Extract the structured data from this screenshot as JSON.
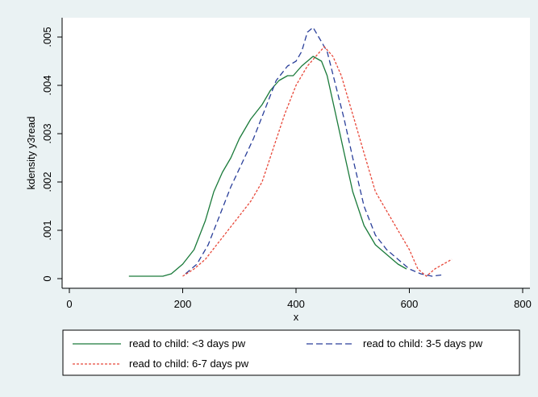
{
  "chart_data": {
    "type": "line",
    "xlabel": "x",
    "ylabel": "kdensity y3read",
    "xlim": [
      0,
      800
    ],
    "ylim": [
      0,
      0.0053
    ],
    "xticks": [
      0,
      200,
      400,
      600,
      800
    ],
    "xtick_labels": [
      "0",
      "200",
      "400",
      "600",
      "800"
    ],
    "yticks": [
      0,
      0.001,
      0.002,
      0.003,
      0.004,
      0.005
    ],
    "ytick_labels": [
      "0",
      ".001",
      ".002",
      ".003",
      ".004",
      ".005"
    ],
    "grid": false,
    "legend_position": "bottom",
    "series": [
      {
        "name": "read to child: <3 days pw",
        "color": "#1a7a3a",
        "dash": "solid",
        "points": [
          [
            105,
            5e-05
          ],
          [
            140,
            5e-05
          ],
          [
            165,
            5e-05
          ],
          [
            180,
            0.0001
          ],
          [
            200,
            0.0003
          ],
          [
            220,
            0.0006
          ],
          [
            240,
            0.0012
          ],
          [
            255,
            0.0018
          ],
          [
            270,
            0.0022
          ],
          [
            285,
            0.0025
          ],
          [
            300,
            0.0029
          ],
          [
            320,
            0.0033
          ],
          [
            340,
            0.0036
          ],
          [
            355,
            0.0039
          ],
          [
            370,
            0.0041
          ],
          [
            385,
            0.0042
          ],
          [
            395,
            0.0042
          ],
          [
            410,
            0.0044
          ],
          [
            420,
            0.0045
          ],
          [
            430,
            0.0046
          ],
          [
            445,
            0.0045
          ],
          [
            455,
            0.0042
          ],
          [
            470,
            0.0034
          ],
          [
            485,
            0.0026
          ],
          [
            500,
            0.0018
          ],
          [
            520,
            0.0011
          ],
          [
            540,
            0.0007
          ],
          [
            560,
            0.0005
          ],
          [
            580,
            0.0003
          ],
          [
            595,
            0.0002
          ]
        ]
      },
      {
        "name": "read to child: 3-5 days pw",
        "color": "#2a3f9a",
        "dash": "long-dash",
        "points": [
          [
            205,
            0.0001
          ],
          [
            225,
            0.0003
          ],
          [
            245,
            0.0007
          ],
          [
            265,
            0.0013
          ],
          [
            285,
            0.0019
          ],
          [
            305,
            0.0024
          ],
          [
            325,
            0.0029
          ],
          [
            345,
            0.0035
          ],
          [
            365,
            0.0041
          ],
          [
            385,
            0.0044
          ],
          [
            400,
            0.0045
          ],
          [
            410,
            0.0047
          ],
          [
            420,
            0.0051
          ],
          [
            430,
            0.0052
          ],
          [
            440,
            0.005
          ],
          [
            455,
            0.0047
          ],
          [
            470,
            0.004
          ],
          [
            485,
            0.0033
          ],
          [
            500,
            0.0025
          ],
          [
            520,
            0.0015
          ],
          [
            540,
            0.0009
          ],
          [
            560,
            0.0006
          ],
          [
            580,
            0.0004
          ],
          [
            600,
            0.0002
          ],
          [
            620,
            0.0001
          ],
          [
            640,
            5e-05
          ],
          [
            660,
            8e-05
          ]
        ]
      },
      {
        "name": "read to child: 6-7 days pw",
        "color": "#e8483a",
        "dash": "short-dash",
        "points": [
          [
            200,
            5e-05
          ],
          [
            220,
            0.0002
          ],
          [
            240,
            0.0004
          ],
          [
            260,
            0.0007
          ],
          [
            280,
            0.001
          ],
          [
            300,
            0.0013
          ],
          [
            320,
            0.0016
          ],
          [
            340,
            0.002
          ],
          [
            360,
            0.0027
          ],
          [
            380,
            0.0034
          ],
          [
            400,
            0.004
          ],
          [
            420,
            0.0044
          ],
          [
            435,
            0.0046
          ],
          [
            450,
            0.0048
          ],
          [
            465,
            0.0046
          ],
          [
            480,
            0.0042
          ],
          [
            500,
            0.0034
          ],
          [
            520,
            0.0026
          ],
          [
            540,
            0.0018
          ],
          [
            560,
            0.0014
          ],
          [
            580,
            0.001
          ],
          [
            600,
            0.0006
          ],
          [
            615,
            0.0002
          ],
          [
            630,
            5e-05
          ],
          [
            645,
            0.0002
          ],
          [
            660,
            0.0003
          ],
          [
            675,
            0.0004
          ]
        ]
      }
    ]
  }
}
